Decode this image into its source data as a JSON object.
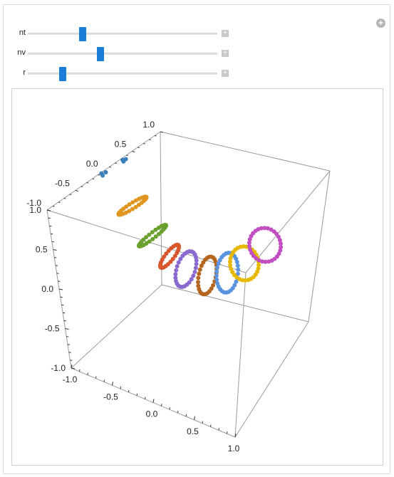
{
  "controls": {
    "sliders": [
      {
        "label": "nt",
        "value": 0.28
      },
      {
        "label": "nv",
        "value": 0.38
      },
      {
        "label": "r",
        "value": 0.17
      }
    ],
    "plus_glyph": "+"
  },
  "plot": {
    "axes": {
      "left_ticks": [
        "-1.0",
        "-0.5",
        "0.0",
        "0.5",
        "1.0"
      ],
      "back_ticks": [
        "-1.0",
        "-0.5",
        "0.0",
        "0.5",
        "1.0"
      ],
      "bottom_ticks": [
        "-1.0",
        "-0.5",
        "0.0",
        "0.5",
        "1.0"
      ]
    },
    "colors": [
      "#3a7fba",
      "#e0951f",
      "#6aa02d",
      "#d7562b",
      "#8a6ad0",
      "#b5661e",
      "#5a93e0",
      "#e6b800",
      "#c14fc1"
    ]
  },
  "chart_data": {
    "type": "scatter",
    "title": "",
    "xlabel": "",
    "ylabel": "",
    "zlabel": "",
    "xlim": [
      -1,
      1
    ],
    "ylim": [
      -1,
      1
    ],
    "zlim": [
      -1,
      1
    ],
    "grid": false,
    "series": [
      {
        "color": "#3a7fba"
      },
      {
        "color": "#e0951f"
      },
      {
        "color": "#6aa02d"
      },
      {
        "color": "#d7562b"
      },
      {
        "color": "#8a6ad0"
      },
      {
        "color": "#b5661e"
      },
      {
        "color": "#5a93e0"
      },
      {
        "color": "#e6b800"
      },
      {
        "color": "#c14fc1"
      }
    ]
  }
}
